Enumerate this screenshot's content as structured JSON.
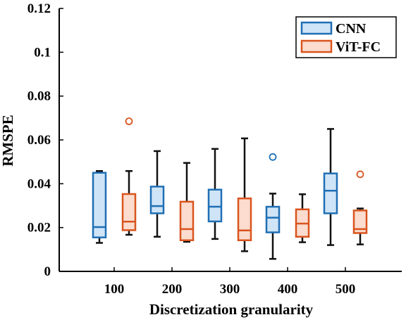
{
  "chart_data": {
    "type": "box",
    "xlabel": "Discretization granularity",
    "ylabel": "RMSPE",
    "ylim": [
      0,
      0.12
    ],
    "yticks": [
      0,
      0.02,
      0.04,
      0.06,
      0.08,
      0.1,
      0.12
    ],
    "ytick_labels": [
      "0",
      "0.02",
      "0.04",
      "0.06",
      "0.08",
      "0.1",
      "0.12"
    ],
    "categories": [
      "100",
      "200",
      "300",
      "400",
      "500"
    ],
    "legend_position": "top-right",
    "grid": false,
    "series": [
      {
        "name": "CNN",
        "color": "#1f6fb5",
        "fill": "#cfe4f6",
        "boxes": [
          {
            "min": 0.013,
            "q1": 0.0155,
            "median": 0.0202,
            "q3": 0.045,
            "max": 0.0458,
            "outliers": []
          },
          {
            "min": 0.0158,
            "q1": 0.0265,
            "median": 0.0298,
            "q3": 0.0387,
            "max": 0.0549,
            "outliers": []
          },
          {
            "min": 0.0148,
            "q1": 0.0228,
            "median": 0.0295,
            "q3": 0.0373,
            "max": 0.0559,
            "outliers": []
          },
          {
            "min": 0.0057,
            "q1": 0.0178,
            "median": 0.0245,
            "q3": 0.0295,
            "max": 0.0355,
            "outliers": [
              0.0522
            ]
          },
          {
            "min": 0.012,
            "q1": 0.0265,
            "median": 0.0368,
            "q3": 0.0447,
            "max": 0.065,
            "outliers": []
          }
        ]
      },
      {
        "name": "ViT-FC",
        "color": "#d9541e",
        "fill": "#fbdcce",
        "boxes": [
          {
            "min": 0.0167,
            "q1": 0.0188,
            "median": 0.0227,
            "q3": 0.0353,
            "max": 0.0458,
            "outliers": [
              0.0685
            ]
          },
          {
            "min": 0.0135,
            "q1": 0.0142,
            "median": 0.0193,
            "q3": 0.0318,
            "max": 0.0495,
            "outliers": []
          },
          {
            "min": 0.0092,
            "q1": 0.0142,
            "median": 0.0187,
            "q3": 0.0333,
            "max": 0.0607,
            "outliers": []
          },
          {
            "min": 0.0133,
            "q1": 0.0158,
            "median": 0.0218,
            "q3": 0.0283,
            "max": 0.0352,
            "outliers": []
          },
          {
            "min": 0.0123,
            "q1": 0.0175,
            "median": 0.0193,
            "q3": 0.0278,
            "max": 0.0287,
            "outliers": [
              0.0443
            ]
          }
        ]
      }
    ]
  }
}
